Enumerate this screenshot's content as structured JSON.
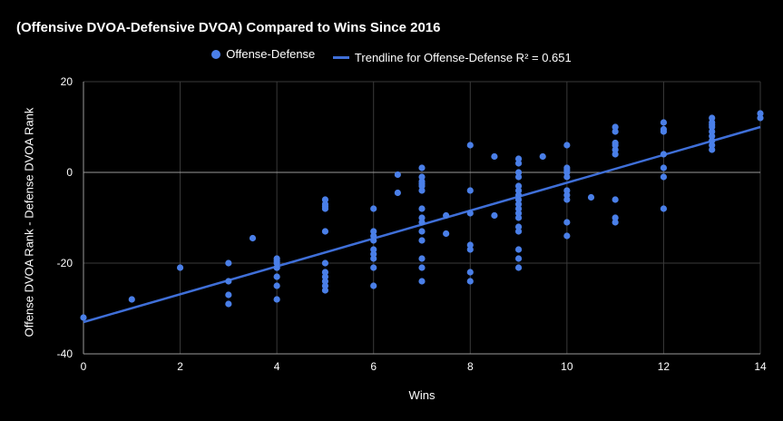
{
  "chart_data": {
    "type": "scatter",
    "title": "(Offensive DVOA-Defensive DVOA) Compared to Wins Since 2016",
    "xlabel": "Wins",
    "ylabel": "Offense DVOA Rank - Defense DVOA Rank",
    "xlim": [
      0,
      14
    ],
    "ylim": [
      -40,
      20
    ],
    "xticks": [
      "0",
      "2",
      "4",
      "6",
      "8",
      "10",
      "12",
      "14"
    ],
    "yticks": [
      "-40",
      "-20",
      "0",
      "20"
    ],
    "grid": true,
    "legend_position": "top",
    "colors": {
      "series": "#4a7fe8",
      "trendline": "#3f6fd8",
      "grid": "#3a3a3a",
      "zero_line": "#9a9a9a"
    },
    "series": [
      {
        "name": "Offense-Defense",
        "x": [
          0,
          1,
          2,
          3,
          3,
          3,
          3,
          3.5,
          4,
          4,
          4,
          4,
          4,
          4,
          4,
          4,
          5,
          5,
          5,
          5,
          5,
          5,
          5,
          5,
          5,
          5,
          5,
          6,
          6,
          6,
          6,
          6,
          6,
          6,
          6,
          6,
          6.5,
          6.5,
          7,
          7,
          7,
          7,
          7,
          7,
          7,
          7,
          7,
          7,
          7,
          7,
          7,
          7,
          7.5,
          7.5,
          8,
          8,
          8,
          8,
          8,
          8,
          8,
          8.5,
          8.5,
          9,
          9,
          9,
          9,
          9,
          9,
          9,
          9,
          9,
          9,
          9,
          9,
          9,
          9,
          9,
          9,
          9,
          9.5,
          10,
          10,
          10,
          10,
          10,
          10,
          10,
          10,
          10,
          10,
          10.5,
          11,
          11,
          11,
          11,
          11,
          11,
          11,
          11,
          11,
          12,
          12,
          12,
          12,
          12,
          12,
          12,
          13,
          13,
          13,
          13,
          13,
          13,
          13,
          13,
          13,
          14,
          14
        ],
        "y": [
          -32,
          -28,
          -21,
          -20,
          -24,
          -27,
          -29,
          -14.5,
          -19,
          -20,
          -21,
          -21,
          -23,
          -25,
          -28,
          -19.5,
          -6,
          -7,
          -8,
          -13,
          -20,
          -22,
          -23,
          -25,
          -26,
          -7.5,
          -24,
          -8,
          -13,
          -14,
          -17,
          -18,
          -19,
          -21,
          -25,
          -15,
          -0.5,
          -4.5,
          1,
          -1,
          -2,
          -3,
          -4,
          -8,
          -10,
          -13,
          -15,
          -19,
          -21,
          -24,
          -11,
          -2.5,
          -9.5,
          -13.5,
          6,
          -4,
          -16,
          -17,
          -22,
          -24,
          -9,
          3.5,
          -9.5,
          3,
          2,
          0,
          -1,
          -3,
          -5,
          -7,
          -8,
          -9,
          -10,
          -12,
          -13,
          -17,
          -19,
          -21,
          -4,
          -6,
          3.5,
          6,
          1,
          0,
          -1,
          -4,
          -5,
          -6,
          -11,
          -14,
          0.5,
          -5.5,
          10,
          9,
          6,
          5,
          4,
          -6,
          -10,
          -11,
          6.5,
          11,
          9,
          4,
          1,
          -1,
          -8,
          9.5,
          12,
          11,
          10,
          9,
          8,
          6,
          5,
          7,
          10.5,
          13,
          12
        ]
      }
    ],
    "trendline": {
      "name": "Trendline for Offense-Defense R² = 0.651",
      "x": [
        0,
        14
      ],
      "y": [
        -33,
        10
      ]
    }
  }
}
